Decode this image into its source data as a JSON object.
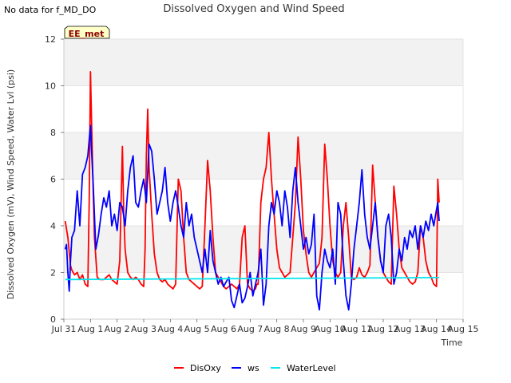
{
  "note": "No data for f_MD_DO",
  "chart_data": {
    "type": "line",
    "title": "Dissolved Oxygen and Wind Speed",
    "site_badge": "EE_met",
    "xlabel": "Time",
    "ylabel": "Dissolved Oxygen (mV), Wind Speed, Water Lvl (psi)",
    "xlim": [
      0,
      15
    ],
    "ylim": [
      0,
      12
    ],
    "x_ticks": [
      0,
      1,
      2,
      3,
      4,
      5,
      6,
      7,
      8,
      9,
      10,
      11,
      12,
      13,
      14,
      15
    ],
    "x_tick_labels": [
      "Jul 31",
      "Aug 1",
      "Aug 2",
      "Aug 3",
      "Aug 4",
      "Aug 5",
      "Aug 6",
      "Aug 7",
      "Aug 8",
      "Aug 9",
      "Aug 10",
      "Aug 11",
      "Aug 12",
      "Aug 13",
      "Aug 14",
      "Aug 15"
    ],
    "y_ticks": [
      0,
      2,
      4,
      6,
      8,
      10,
      12
    ],
    "y_tick_labels": [
      "0",
      "2",
      "4",
      "6",
      "8",
      "10",
      "12"
    ],
    "x_unit": "days since Jul 31",
    "grid": true,
    "band_shading": true,
    "legend_position": "bottom-center",
    "series": [
      {
        "name": "DisOxy",
        "color": "#ff0000",
        "x": [
          0.05,
          0.15,
          0.25,
          0.3,
          0.4,
          0.5,
          0.6,
          0.7,
          0.8,
          0.9,
          0.95,
          1.0,
          1.05,
          1.1,
          1.15,
          1.25,
          1.35,
          1.5,
          1.6,
          1.7,
          1.8,
          1.9,
          2.0,
          2.1,
          2.2,
          2.25,
          2.3,
          2.4,
          2.5,
          2.6,
          2.7,
          2.8,
          2.9,
          3.0,
          3.05,
          3.1,
          3.15,
          3.2,
          3.3,
          3.4,
          3.5,
          3.6,
          3.7,
          3.8,
          3.9,
          4.0,
          4.1,
          4.2,
          4.3,
          4.4,
          4.5,
          4.6,
          4.7,
          4.8,
          4.9,
          5.0,
          5.1,
          5.2,
          5.3,
          5.4,
          5.5,
          5.6,
          5.7,
          5.8,
          5.9,
          6.0,
          6.1,
          6.2,
          6.3,
          6.4,
          6.5,
          6.6,
          6.7,
          6.8,
          6.9,
          7.0,
          7.1,
          7.2,
          7.25,
          7.3,
          7.4,
          7.5,
          7.6,
          7.7,
          7.8,
          7.9,
          8.0,
          8.1,
          8.2,
          8.3,
          8.4,
          8.5,
          8.6,
          8.7,
          8.8,
          8.9,
          9.0,
          9.1,
          9.2,
          9.3,
          9.4,
          9.5,
          9.6,
          9.7,
          9.8,
          9.9,
          10.0,
          10.1,
          10.2,
          10.3,
          10.4,
          10.5,
          10.6,
          10.7,
          10.8,
          10.9,
          11.0,
          11.1,
          11.2,
          11.3,
          11.4,
          11.5,
          11.6,
          11.7,
          11.8,
          11.9,
          12.0,
          12.1,
          12.2,
          12.3,
          12.4,
          12.5,
          12.6,
          12.7,
          12.8,
          12.9,
          13.0,
          13.1,
          13.2,
          13.3,
          13.4,
          13.5,
          13.6,
          13.7,
          13.8,
          13.9,
          14.0,
          14.05,
          14.1
        ],
        "y": [
          4.2,
          3.5,
          2.3,
          2.1,
          1.9,
          2.0,
          1.7,
          1.9,
          1.5,
          1.4,
          5.0,
          10.6,
          8.0,
          5.5,
          3.5,
          1.8,
          1.7,
          1.7,
          1.8,
          1.9,
          1.7,
          1.6,
          1.5,
          2.5,
          7.4,
          4.5,
          3.0,
          2.0,
          1.8,
          1.7,
          1.8,
          1.7,
          1.5,
          1.4,
          3.0,
          7.0,
          9.0,
          6.5,
          4.5,
          2.8,
          2.0,
          1.7,
          1.6,
          1.7,
          1.5,
          1.4,
          1.3,
          1.5,
          6.0,
          5.5,
          3.5,
          2.0,
          1.7,
          1.6,
          1.5,
          1.4,
          1.3,
          1.4,
          4.0,
          6.8,
          5.5,
          3.5,
          2.0,
          1.8,
          1.6,
          1.4,
          1.3,
          1.4,
          1.5,
          1.4,
          1.3,
          1.5,
          3.5,
          4.0,
          1.5,
          1.3,
          1.2,
          1.3,
          1.5,
          1.5,
          5.0,
          6.0,
          6.5,
          8.0,
          6.0,
          4.5,
          3.0,
          2.2,
          2.0,
          1.8,
          1.9,
          2.0,
          3.5,
          5.0,
          7.8,
          6.0,
          3.8,
          2.8,
          2.0,
          1.8,
          2.0,
          2.2,
          2.4,
          3.5,
          7.5,
          6.0,
          4.0,
          2.5,
          2.0,
          1.8,
          2.0,
          4.0,
          5.0,
          3.5,
          1.8,
          1.7,
          1.8,
          2.2,
          1.9,
          1.8,
          2.0,
          2.3,
          6.6,
          5.0,
          3.5,
          2.5,
          2.0,
          1.8,
          1.6,
          1.5,
          5.7,
          4.5,
          3.0,
          2.2,
          2.0,
          1.8,
          1.6,
          1.5,
          1.6,
          2.0,
          4.0,
          3.5,
          2.5,
          2.0,
          1.8,
          1.5,
          1.4,
          6.0,
          5.0
        ]
      },
      {
        "name": "ws",
        "color": "#0000ff",
        "x": [
          0.05,
          0.1,
          0.15,
          0.2,
          0.25,
          0.3,
          0.4,
          0.5,
          0.6,
          0.7,
          0.8,
          0.9,
          1.0,
          1.05,
          1.1,
          1.2,
          1.3,
          1.4,
          1.5,
          1.6,
          1.7,
          1.8,
          1.9,
          2.0,
          2.1,
          2.2,
          2.3,
          2.4,
          2.5,
          2.6,
          2.7,
          2.8,
          2.9,
          3.0,
          3.1,
          3.2,
          3.3,
          3.4,
          3.5,
          3.6,
          3.7,
          3.8,
          3.9,
          4.0,
          4.1,
          4.2,
          4.3,
          4.4,
          4.5,
          4.6,
          4.7,
          4.8,
          4.9,
          5.0,
          5.1,
          5.2,
          5.3,
          5.4,
          5.5,
          5.6,
          5.7,
          5.8,
          5.9,
          6.0,
          6.1,
          6.2,
          6.3,
          6.4,
          6.5,
          6.6,
          6.7,
          6.8,
          6.9,
          7.0,
          7.1,
          7.2,
          7.3,
          7.4,
          7.5,
          7.6,
          7.7,
          7.8,
          7.9,
          8.0,
          8.1,
          8.2,
          8.3,
          8.4,
          8.5,
          8.6,
          8.7,
          8.8,
          8.9,
          9.0,
          9.1,
          9.2,
          9.3,
          9.4,
          9.5,
          9.6,
          9.7,
          9.8,
          9.9,
          10.0,
          10.1,
          10.2,
          10.3,
          10.4,
          10.5,
          10.6,
          10.7,
          10.8,
          10.9,
          11.0,
          11.1,
          11.2,
          11.3,
          11.4,
          11.5,
          11.6,
          11.7,
          11.8,
          11.9,
          12.0,
          12.1,
          12.2,
          12.3,
          12.4,
          12.5,
          12.6,
          12.7,
          12.8,
          12.9,
          13.0,
          13.1,
          13.2,
          13.3,
          13.4,
          13.5,
          13.6,
          13.7,
          13.8,
          13.9,
          14.0,
          14.05,
          14.1
        ],
        "y": [
          3.0,
          3.2,
          2.0,
          1.2,
          2.5,
          3.5,
          3.8,
          5.5,
          4.0,
          6.2,
          6.5,
          7.0,
          8.3,
          7.0,
          5.8,
          3.0,
          3.6,
          4.5,
          5.2,
          4.8,
          5.5,
          4.0,
          4.5,
          3.8,
          5.0,
          4.8,
          4.0,
          5.5,
          6.5,
          7.0,
          5.0,
          4.8,
          5.5,
          6.0,
          5.0,
          7.5,
          7.2,
          6.0,
          4.5,
          5.0,
          5.5,
          6.5,
          5.0,
          4.2,
          5.0,
          5.5,
          4.8,
          4.0,
          3.5,
          5.0,
          4.0,
          4.5,
          3.5,
          3.0,
          2.5,
          2.0,
          3.0,
          2.0,
          3.8,
          2.5,
          2.0,
          1.5,
          1.8,
          1.4,
          1.6,
          1.8,
          0.8,
          0.5,
          1.0,
          1.5,
          0.7,
          0.9,
          1.4,
          2.0,
          1.0,
          1.5,
          2.0,
          3.0,
          0.6,
          1.5,
          4.0,
          5.0,
          4.5,
          5.5,
          5.0,
          4.0,
          5.5,
          4.8,
          3.5,
          5.5,
          6.5,
          5.0,
          4.0,
          3.0,
          3.5,
          2.8,
          3.2,
          4.5,
          1.0,
          0.4,
          2.0,
          3.0,
          2.5,
          2.2,
          3.0,
          1.5,
          5.0,
          4.5,
          2.5,
          1.0,
          0.4,
          1.5,
          3.0,
          4.0,
          5.0,
          6.4,
          4.5,
          3.5,
          3.0,
          4.0,
          5.0,
          3.5,
          2.5,
          2.0,
          4.0,
          4.5,
          3.5,
          1.5,
          2.0,
          3.0,
          2.5,
          3.5,
          3.0,
          3.8,
          3.5,
          4.0,
          3.0,
          4.0,
          3.5,
          4.2,
          3.8,
          4.5,
          4.0,
          4.7,
          5.0,
          4.2
        ]
      },
      {
        "name": "WaterLevel",
        "color": "#00e5ee",
        "x": [
          0.05,
          14.1
        ],
        "y": [
          1.7,
          1.78
        ]
      }
    ]
  }
}
